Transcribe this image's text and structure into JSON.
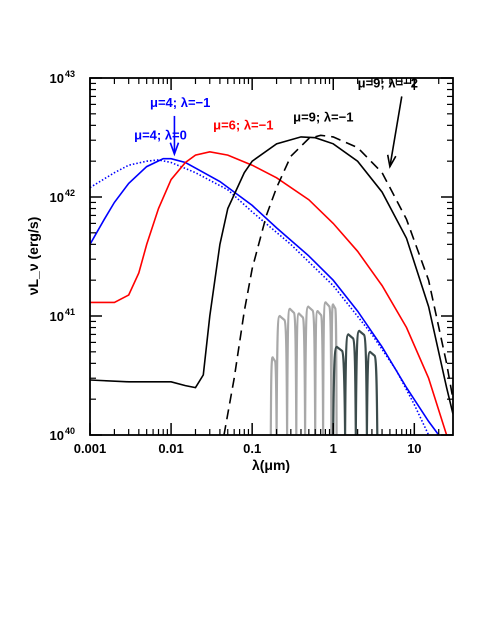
{
  "chart_data": {
    "type": "line",
    "xlabel": "λ(μm)",
    "ylabel": "νL_ν (erg/s)",
    "xscale": "log",
    "yscale": "log",
    "xlim": [
      0.001,
      30
    ],
    "ylim": [
      1e+40,
      1e+43
    ],
    "grid": false,
    "x_ticks": [
      {
        "value": 0.001,
        "label": "0.001"
      },
      {
        "value": 0.01,
        "label": "0.01"
      },
      {
        "value": 0.1,
        "label": "0.1"
      },
      {
        "value": 1,
        "label": "1"
      },
      {
        "value": 10,
        "label": "10"
      }
    ],
    "y_ticks": [
      {
        "value": 1e+40,
        "base": "10",
        "exp": "40"
      },
      {
        "value": 1e+41,
        "base": "10",
        "exp": "41"
      },
      {
        "value": 1e+42,
        "base": "10",
        "exp": "42"
      },
      {
        "value": 1e+43,
        "base": "10",
        "exp": "43"
      }
    ],
    "series": [
      {
        "color": "#0000ff",
        "style": "solid",
        "points": [
          [
            0.001,
            4e+41
          ],
          [
            0.0015,
            6.5e+41
          ],
          [
            0.002,
            9e+41
          ],
          [
            0.003,
            1.3e+42
          ],
          [
            0.005,
            1.8e+42
          ],
          [
            0.008,
            2.1e+42
          ],
          [
            0.01,
            2.1e+42
          ],
          [
            0.015,
            1.95e+42
          ],
          [
            0.02,
            1.75e+42
          ],
          [
            0.04,
            1.35e+42
          ],
          [
            0.1,
            8.5e+41
          ],
          [
            0.2,
            5.5e+41
          ],
          [
            0.5,
            3.2e+41
          ],
          [
            1,
            2e+41
          ],
          [
            2,
            1.1e+41
          ],
          [
            4,
            5.5e+40
          ],
          [
            8,
            2.5e+40
          ],
          [
            15,
            1.3e+40
          ],
          [
            20,
            1e+40
          ]
        ]
      },
      {
        "color": "#0000ff",
        "style": "dotted",
        "points": [
          [
            0.001,
            1.2e+42
          ],
          [
            0.002,
            1.6e+42
          ],
          [
            0.003,
            1.85e+42
          ],
          [
            0.005,
            2e+42
          ],
          [
            0.007,
            2.05e+42
          ],
          [
            0.01,
            1.95e+42
          ],
          [
            0.02,
            1.6e+42
          ],
          [
            0.05,
            1.15e+42
          ],
          [
            0.1,
            7.5e+41
          ],
          [
            0.3,
            4e+41
          ],
          [
            1,
            1.8e+41
          ],
          [
            3,
            7e+40
          ],
          [
            6,
            3.5e+40
          ],
          [
            10,
            1.8e+40
          ],
          [
            15,
            1e+40
          ]
        ]
      },
      {
        "color": "#ff0000",
        "style": "solid",
        "points": [
          [
            0.001,
            1.3e+41
          ],
          [
            0.002,
            1.3e+41
          ],
          [
            0.003,
            1.5e+41
          ],
          [
            0.004,
            2.3e+41
          ],
          [
            0.005,
            4e+41
          ],
          [
            0.007,
            8e+41
          ],
          [
            0.01,
            1.4e+42
          ],
          [
            0.015,
            1.95e+42
          ],
          [
            0.02,
            2.25e+42
          ],
          [
            0.03,
            2.4e+42
          ],
          [
            0.05,
            2.25e+42
          ],
          [
            0.1,
            1.85e+42
          ],
          [
            0.2,
            1.45e+42
          ],
          [
            0.5,
            9.5e+41
          ],
          [
            1,
            6e+41
          ],
          [
            2,
            3.5e+41
          ],
          [
            4,
            1.8e+41
          ],
          [
            8,
            8e+40
          ],
          [
            15,
            3e+40
          ],
          [
            25,
            1e+40
          ]
        ]
      },
      {
        "color": "#000000",
        "style": "solid",
        "points": [
          [
            0.001,
            2.9e+40
          ],
          [
            0.003,
            2.8e+40
          ],
          [
            0.01,
            2.8e+40
          ],
          [
            0.015,
            2.6e+40
          ],
          [
            0.02,
            2.5e+40
          ],
          [
            0.025,
            3.2e+40
          ],
          [
            0.03,
            1e+41
          ],
          [
            0.04,
            4e+41
          ],
          [
            0.05,
            8e+41
          ],
          [
            0.08,
            1.6e+42
          ],
          [
            0.1,
            2e+42
          ],
          [
            0.2,
            2.8e+42
          ],
          [
            0.4,
            3.2e+42
          ],
          [
            0.6,
            3.15e+42
          ],
          [
            1,
            2.8e+42
          ],
          [
            2,
            2e+42
          ],
          [
            4,
            1.1e+42
          ],
          [
            8,
            4.5e+41
          ],
          [
            15,
            1.2e+41
          ],
          [
            25,
            2.5e+40
          ],
          [
            30,
            1.5e+40
          ]
        ]
      },
      {
        "color": "#000000",
        "style": "dashed",
        "points": [
          [
            0.045,
            1e+40
          ],
          [
            0.06,
            3e+40
          ],
          [
            0.08,
            1.1e+41
          ],
          [
            0.1,
            2.5e+41
          ],
          [
            0.15,
            7e+41
          ],
          [
            0.2,
            1.2e+42
          ],
          [
            0.3,
            2.2e+42
          ],
          [
            0.5,
            3.1e+42
          ],
          [
            0.7,
            3.3e+42
          ],
          [
            1,
            3.2e+42
          ],
          [
            2,
            2.6e+42
          ],
          [
            4,
            1.6e+42
          ],
          [
            8,
            6.5e+41
          ],
          [
            15,
            2e+41
          ],
          [
            25,
            4e+40
          ],
          [
            30,
            2e+40
          ]
        ]
      }
    ],
    "filter_curves": [
      {
        "color": "#a8a8a8",
        "bands": [
          [
            0.17,
            0.2,
            4.5e+40
          ],
          [
            0.2,
            0.27,
            1e+41
          ],
          [
            0.27,
            0.35,
            1.15e+41
          ],
          [
            0.35,
            0.45,
            1.05e+41
          ],
          [
            0.45,
            0.6,
            1.2e+41
          ],
          [
            0.6,
            0.75,
            1.1e+41
          ],
          [
            0.75,
            0.95,
            1.3e+41
          ],
          [
            0.95,
            1.1,
            1.25e+41
          ]
        ]
      },
      {
        "color": "#3c4c4c",
        "bands": [
          [
            1.0,
            1.4,
            5.5e+40
          ],
          [
            1.4,
            1.9,
            7e+40
          ],
          [
            1.9,
            2.6,
            7.5e+40
          ],
          [
            2.6,
            3.5,
            5e+40
          ]
        ]
      }
    ],
    "annotations": [
      {
        "text": "μ=4; λ=−1",
        "color": "#0000ff",
        "x": 0.0055,
        "y": 5.7e+42
      },
      {
        "text": "μ=4; λ=0",
        "color": "#0000ff",
        "x": 0.0035,
        "y": 3.05e+42
      },
      {
        "text": "μ=6; λ=−1",
        "color": "#ff0000",
        "x": 0.033,
        "y": 3.7e+42
      },
      {
        "text": "μ=9; λ=−1",
        "color": "#000000",
        "x": 0.32,
        "y": 4.3e+42
      },
      {
        "text": "μ=9; λ=−2",
        "color": "#000000",
        "x": 2.0,
        "y": 8.3e+42
      }
    ],
    "arrows": [
      {
        "color": "#0000ff",
        "from": [
          0.011,
          4.8e+42
        ],
        "to": [
          0.011,
          2.3e+42
        ]
      },
      {
        "color": "#000000",
        "from": [
          7.0,
          7e+42
        ],
        "to": [
          5.0,
          1.8e+42
        ]
      }
    ]
  }
}
